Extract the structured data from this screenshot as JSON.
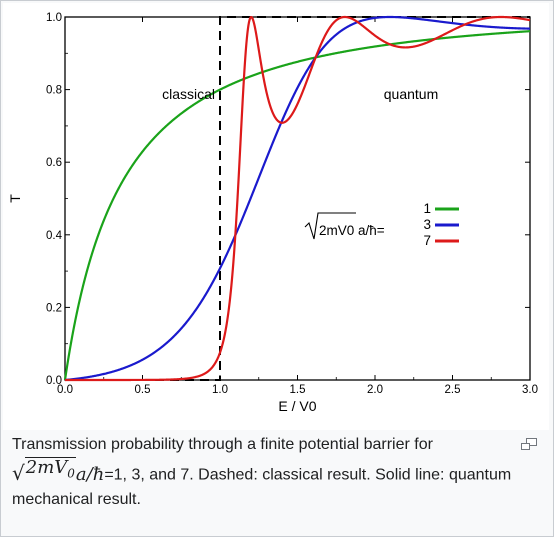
{
  "chart_data": {
    "type": "line",
    "xlabel": "E / V0",
    "ylabel": "T",
    "xlim": [
      0,
      3.0
    ],
    "ylim": [
      0,
      1.0
    ],
    "x_ticks": [
      "0.0",
      "0.5",
      "1.0",
      "1.5",
      "2.0",
      "2.5",
      "3.0"
    ],
    "y_ticks": [
      "0.0",
      "0.2",
      "0.4",
      "0.6",
      "0.8",
      "1.0"
    ],
    "grid": false,
    "annotations": {
      "classical": "classical",
      "quantum": "quantum"
    },
    "legend": {
      "placement": "center-right",
      "label_prefix": "2mV0 a/ħ=",
      "entries": [
        "1",
        "3",
        "7"
      ]
    },
    "classical_series": {
      "style": "dashed",
      "color": "#000000",
      "points": [
        [
          0.0,
          0.0
        ],
        [
          1.0,
          0.0
        ],
        [
          1.0,
          1.0
        ],
        [
          3.0,
          1.0
        ]
      ]
    },
    "series": [
      {
        "name": "1",
        "color": "#1aa31a",
        "alpha": 1
      },
      {
        "name": "3",
        "color": "#1a1acd",
        "alpha": 3
      },
      {
        "name": "7",
        "color": "#dd1a1a",
        "alpha": 7
      }
    ]
  },
  "caption": {
    "text_before": "Transmission probability through a finite potential barrier for ",
    "math_radicand": "2mV",
    "math_subscript": "0",
    "math_rest": "a/ħ",
    "text_after": "=1, 3, and 7. Dashed: classical result. Solid line: quantum mechanical result.",
    "enlarge_icon": "magnify-clip-icon"
  }
}
